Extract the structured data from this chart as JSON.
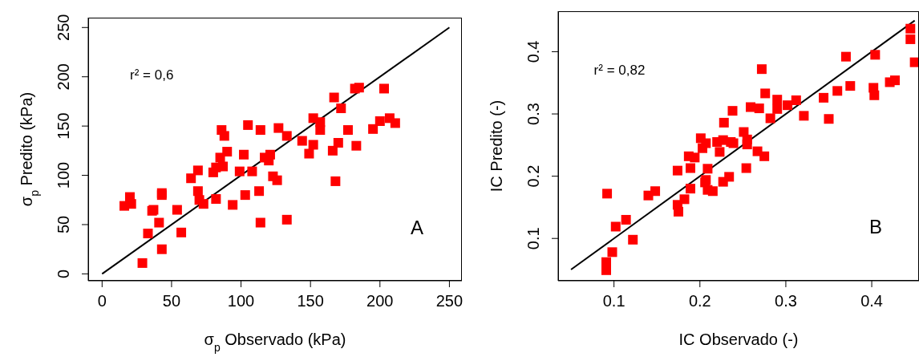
{
  "chart_data": [
    {
      "type": "scatter",
      "xlabel": "σ$_{p}$ Observado (kPa)",
      "ylabel": "σ$_{p}$ Predito (kPa)",
      "annotations": [
        "r² = 0,6",
        "A"
      ],
      "xlim": [
        -10,
        259
      ],
      "ylim": [
        -7,
        260
      ],
      "xticks": [
        0,
        50,
        100,
        150,
        200,
        250
      ],
      "yticks": [
        0,
        50,
        100,
        150,
        200,
        250
      ],
      "grid": false,
      "marker": "square",
      "series": [
        {
          "color": "#ff0000",
          "x": [
            16,
            20,
            21,
            29,
            33,
            36,
            37,
            41,
            43,
            43,
            43,
            54,
            57,
            64,
            69,
            69,
            70,
            73,
            80,
            82,
            82,
            85,
            87,
            86,
            88,
            90,
            94,
            99,
            102,
            103,
            105,
            108,
            113,
            114,
            114,
            117,
            120,
            121,
            123,
            126,
            127,
            133,
            133,
            144,
            149,
            152,
            152,
            157,
            157,
            166,
            168,
            167,
            170,
            172,
            177,
            182,
            185,
            183,
            195,
            200,
            203,
            207,
            211
          ],
          "values": [
            69,
            78,
            71,
            11,
            41,
            64,
            65,
            52,
            25,
            82,
            80,
            65,
            42,
            97,
            105,
            84,
            75,
            71,
            103,
            76,
            108,
            118,
            109,
            146,
            140,
            124,
            70,
            104,
            121,
            80,
            151,
            104,
            84,
            146,
            52,
            118,
            115,
            121,
            99,
            95,
            148,
            140,
            55,
            135,
            122,
            131,
            158,
            154,
            146,
            125,
            94,
            179,
            133,
            168,
            146,
            188,
            189,
            130,
            147,
            155,
            188,
            158,
            153
          ]
        },
        {
          "type": "line",
          "color": "#000000",
          "marker": "none",
          "x": [
            0,
            250
          ],
          "values": [
            0,
            250
          ]
        }
      ]
    },
    {
      "type": "scatter",
      "xlabel": "IC Observado (-)",
      "ylabel": "IC Predito (-)",
      "annotations": [
        "r² = 0,82",
        "B"
      ],
      "xlim": [
        0.035,
        0.455
      ],
      "ylim": [
        0.032,
        0.465
      ],
      "xticks": [
        0.1,
        0.2,
        0.3,
        0.4
      ],
      "yticks": [
        0.1,
        0.2,
        0.3,
        0.4
      ],
      "grid": false,
      "marker": "square",
      "series": [
        {
          "color": "#ff0000",
          "x": [
            0.092,
            0.091,
            0.091,
            0.098,
            0.102,
            0.114,
            0.122,
            0.14,
            0.148,
            0.174,
            0.174,
            0.175,
            0.182,
            0.187,
            0.189,
            0.189,
            0.194,
            0.201,
            0.203,
            0.207,
            0.209,
            0.207,
            0.206,
            0.209,
            0.215,
            0.22,
            0.223,
            0.227,
            0.228,
            0.227,
            0.234,
            0.236,
            0.239,
            0.238,
            0.251,
            0.255,
            0.255,
            0.254,
            0.259,
            0.267,
            0.269,
            0.272,
            0.275,
            0.276,
            0.282,
            0.29,
            0.29,
            0.302,
            0.312,
            0.321,
            0.344,
            0.35,
            0.36,
            0.37,
            0.375,
            0.402,
            0.403,
            0.404,
            0.421,
            0.427,
            0.445,
            0.445,
            0.45
          ],
          "values": [
            0.172,
            0.049,
            0.062,
            0.078,
            0.119,
            0.13,
            0.098,
            0.169,
            0.176,
            0.209,
            0.154,
            0.143,
            0.163,
            0.232,
            0.213,
            0.18,
            0.23,
            0.261,
            0.245,
            0.253,
            0.212,
            0.194,
            0.19,
            0.178,
            0.176,
            0.255,
            0.239,
            0.258,
            0.286,
            0.191,
            0.199,
            0.255,
            0.253,
            0.305,
            0.271,
            0.259,
            0.251,
            0.213,
            0.311,
            0.24,
            0.309,
            0.372,
            0.232,
            0.333,
            0.293,
            0.323,
            0.308,
            0.314,
            0.322,
            0.297,
            0.326,
            0.292,
            0.337,
            0.392,
            0.345,
            0.342,
            0.33,
            0.395,
            0.351,
            0.354,
            0.437,
            0.42,
            0.383
          ]
        },
        {
          "type": "line",
          "color": "#000000",
          "marker": "none",
          "x": [
            0.05,
            0.45
          ],
          "values": [
            0.05,
            0.45
          ]
        }
      ]
    }
  ]
}
